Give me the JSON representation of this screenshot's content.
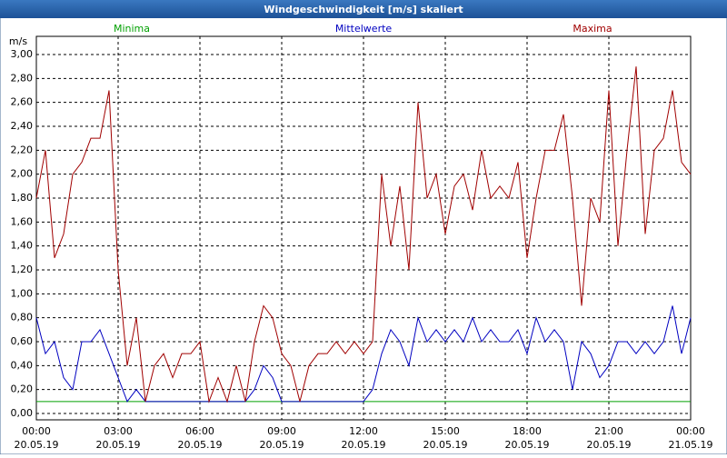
{
  "chart_data": {
    "type": "line",
    "title": "Windgeschwindigkeit [m/s] skaliert",
    "y_unit": "m/s",
    "xlim": [
      0,
      1440
    ],
    "ylim": [
      0,
      3
    ],
    "grid": true,
    "xticks": [
      {
        "value": 0,
        "label": "00:00",
        "date": "20.05.19"
      },
      {
        "value": 180,
        "label": "03:00",
        "date": "20.05.19"
      },
      {
        "value": 360,
        "label": "06:00",
        "date": "20.05.19"
      },
      {
        "value": 540,
        "label": "09:00",
        "date": "20.05.19"
      },
      {
        "value": 720,
        "label": "12:00",
        "date": "20.05.19"
      },
      {
        "value": 900,
        "label": "15:00",
        "date": "20.05.19"
      },
      {
        "value": 1080,
        "label": "18:00",
        "date": "20.05.19"
      },
      {
        "value": 1260,
        "label": "21:00",
        "date": "20.05.19"
      },
      {
        "value": 1440,
        "label": "00:00",
        "date": "21.05.19"
      }
    ],
    "yticks": [
      {
        "value": 0,
        "label": "0,00"
      },
      {
        "value": 0.2,
        "label": "0,20"
      },
      {
        "value": 0.4,
        "label": "0,40"
      },
      {
        "value": 0.6,
        "label": "0,60"
      },
      {
        "value": 0.8,
        "label": "0,80"
      },
      {
        "value": 1.0,
        "label": "1,00"
      },
      {
        "value": 1.2,
        "label": "1,20"
      },
      {
        "value": 1.4,
        "label": "1,40"
      },
      {
        "value": 1.6,
        "label": "1,60"
      },
      {
        "value": 1.8,
        "label": "1,80"
      },
      {
        "value": 2.0,
        "label": "2,00"
      },
      {
        "value": 2.2,
        "label": "2,20"
      },
      {
        "value": 2.4,
        "label": "2,40"
      },
      {
        "value": 2.6,
        "label": "2,60"
      },
      {
        "value": 2.8,
        "label": "2,80"
      },
      {
        "value": 3.0,
        "label": "3,00"
      }
    ],
    "x": [
      0,
      20,
      40,
      60,
      80,
      100,
      120,
      140,
      160,
      180,
      200,
      220,
      240,
      260,
      280,
      300,
      320,
      340,
      360,
      380,
      400,
      420,
      440,
      460,
      480,
      500,
      520,
      540,
      560,
      580,
      600,
      620,
      640,
      660,
      680,
      700,
      720,
      740,
      760,
      780,
      800,
      820,
      840,
      860,
      880,
      900,
      920,
      940,
      960,
      980,
      1000,
      1020,
      1040,
      1060,
      1080,
      1100,
      1120,
      1140,
      1160,
      1180,
      1200,
      1220,
      1240,
      1260,
      1280,
      1300,
      1320,
      1340,
      1360,
      1380,
      1400,
      1420,
      1440
    ],
    "series": [
      {
        "name": "Minima",
        "color": "#00a000",
        "values": [
          0.1,
          0.1,
          0.1,
          0.1,
          0.1,
          0.1,
          0.1,
          0.1,
          0.1,
          0.1,
          0.1,
          0.1,
          0.1,
          0.1,
          0.1,
          0.1,
          0.1,
          0.1,
          0.1,
          0.1,
          0.1,
          0.1,
          0.1,
          0.1,
          0.1,
          0.1,
          0.1,
          0.1,
          0.1,
          0.1,
          0.1,
          0.1,
          0.1,
          0.1,
          0.1,
          0.1,
          0.1,
          0.1,
          0.1,
          0.1,
          0.1,
          0.1,
          0.1,
          0.1,
          0.1,
          0.1,
          0.1,
          0.1,
          0.1,
          0.1,
          0.1,
          0.1,
          0.1,
          0.1,
          0.1,
          0.1,
          0.1,
          0.1,
          0.1,
          0.1,
          0.1,
          0.1,
          0.1,
          0.1,
          0.1,
          0.1,
          0.1,
          0.1,
          0.1,
          0.1,
          0.1,
          0.1,
          0.1
        ]
      },
      {
        "name": "Mittelwerte",
        "color": "#0000c0",
        "values": [
          0.8,
          0.5,
          0.6,
          0.3,
          0.2,
          0.6,
          0.6,
          0.7,
          0.5,
          0.3,
          0.1,
          0.2,
          0.1,
          0.1,
          0.1,
          0.1,
          0.1,
          0.1,
          0.1,
          0.1,
          0.1,
          0.1,
          0.1,
          0.1,
          0.2,
          0.4,
          0.3,
          0.1,
          0.1,
          0.1,
          0.1,
          0.1,
          0.1,
          0.1,
          0.1,
          0.1,
          0.1,
          0.2,
          0.5,
          0.7,
          0.6,
          0.4,
          0.8,
          0.6,
          0.7,
          0.6,
          0.7,
          0.6,
          0.8,
          0.6,
          0.7,
          0.6,
          0.6,
          0.7,
          0.5,
          0.8,
          0.6,
          0.7,
          0.6,
          0.2,
          0.6,
          0.5,
          0.3,
          0.4,
          0.6,
          0.6,
          0.5,
          0.6,
          0.5,
          0.6,
          0.9,
          0.5,
          0.8
        ]
      },
      {
        "name": "Maxima",
        "color": "#a00000",
        "values": [
          1.8,
          2.2,
          1.3,
          1.5,
          2.0,
          2.1,
          2.3,
          2.3,
          2.7,
          1.2,
          0.4,
          0.8,
          0.1,
          0.4,
          0.5,
          0.3,
          0.5,
          0.5,
          0.6,
          0.1,
          0.3,
          0.1,
          0.4,
          0.1,
          0.6,
          0.9,
          0.8,
          0.5,
          0.4,
          0.1,
          0.4,
          0.5,
          0.5,
          0.6,
          0.5,
          0.6,
          0.5,
          0.6,
          2.0,
          1.4,
          1.9,
          1.2,
          2.6,
          1.8,
          2.0,
          1.5,
          1.9,
          2.0,
          1.7,
          2.2,
          1.8,
          1.9,
          1.8,
          2.1,
          1.3,
          1.8,
          2.2,
          2.2,
          2.5,
          1.8,
          0.9,
          1.8,
          1.6,
          2.7,
          1.4,
          2.2,
          2.9,
          1.5,
          2.2,
          2.3,
          2.7,
          2.1,
          2.0
        ]
      }
    ]
  }
}
